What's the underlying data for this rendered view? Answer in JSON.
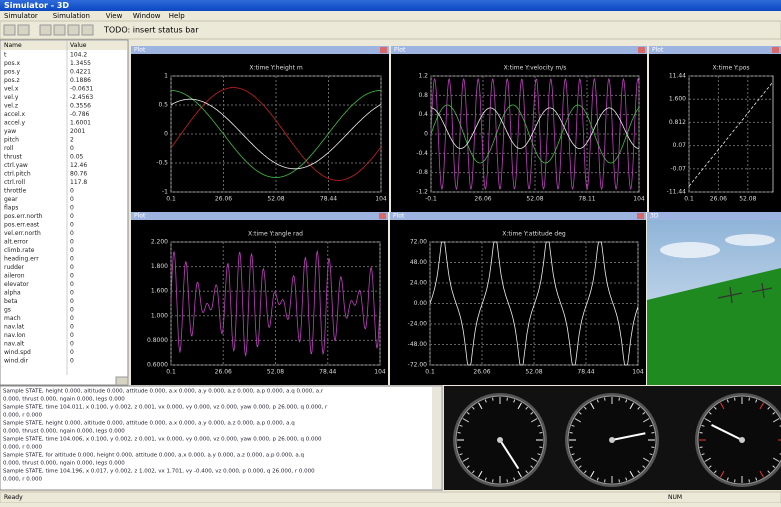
{
  "window": {
    "title": "Simulator - 3D"
  },
  "menu": [
    "Simulator",
    "Simulation",
    "View",
    "Window",
    "Help"
  ],
  "toolbar": {
    "status": "TODO: insert status bar"
  },
  "variables": {
    "header": [
      "Name",
      "Value"
    ],
    "rows": [
      [
        "t",
        "104.2"
      ],
      [
        "pos.x",
        "1.3455"
      ],
      [
        "pos.y",
        "0.4221"
      ],
      [
        "pos.z",
        "0.1886"
      ],
      [
        "vel.x",
        "-0.0631"
      ],
      [
        "vel.y",
        "-2.4563"
      ],
      [
        "vel.z",
        "0.3556"
      ],
      [
        "accel.x",
        "-0.786"
      ],
      [
        "accel.y",
        "1.6001"
      ],
      [
        "yaw",
        "2001"
      ],
      [
        "pitch",
        "2"
      ],
      [
        "roll",
        "0"
      ],
      [
        "thrust",
        "0.05"
      ],
      [
        "ctrl.yaw",
        "12.46"
      ],
      [
        "ctrl.pitch",
        "80.76"
      ],
      [
        "ctrl.roll",
        "117.8"
      ],
      [
        "throttle",
        "0"
      ],
      [
        "gear",
        "0"
      ],
      [
        "flaps",
        "0"
      ],
      [
        "pos.err.north",
        "0"
      ],
      [
        "pos.err.east",
        "0"
      ],
      [
        "vel.err.north",
        "0"
      ],
      [
        "alt.error",
        "0"
      ],
      [
        "climb.rate",
        "0"
      ],
      [
        "heading.err",
        "0"
      ],
      [
        "rudder",
        "0"
      ],
      [
        "aileron",
        "0"
      ],
      [
        "elevator",
        "0"
      ],
      [
        "alpha",
        "0"
      ],
      [
        "beta",
        "0"
      ],
      [
        "gs",
        "0"
      ],
      [
        "mach",
        "0"
      ],
      [
        "nav.lat",
        "0"
      ],
      [
        "nav.lon",
        "0"
      ],
      [
        "nav.alt",
        "0"
      ],
      [
        "wind.spd",
        "0"
      ],
      [
        "wind.dir",
        "0"
      ]
    ]
  },
  "plots": [
    {
      "title": "Plot",
      "caption": "X:time  Y:height m",
      "yticks": [
        "1",
        "0.5",
        "0",
        "-0.5",
        "-1"
      ],
      "xticks": [
        "0.1",
        "26.06",
        "52.08",
        "78.44",
        "104"
      ]
    },
    {
      "title": "Plot",
      "caption": "X:time  Y:velocity m/s",
      "yticks": [
        "1.2",
        "0.8",
        "0.4",
        "0",
        "-0.4",
        "-0.8",
        "-1.2"
      ],
      "xticks": [
        "-0.1",
        "26.06",
        "52.08",
        "78.11",
        "104"
      ]
    },
    {
      "title": "Plot",
      "caption": "X:time  Y:pos",
      "yticks": [
        "11.44",
        "1.600",
        "0.812",
        "0.07",
        "-0.07",
        "-11.44"
      ],
      "xticks": [
        "0.1",
        "26.06",
        "52.08"
      ]
    },
    {
      "title": "Plot",
      "caption": "X:time  Y:angle rad",
      "yticks": [
        "2.200",
        "1.800",
        "1.600",
        "1.000",
        "0.8000",
        "0.6000"
      ],
      "xticks": [
        "0.1",
        "26.06",
        "52.08",
        "78.44",
        "104"
      ]
    },
    {
      "title": "Plot",
      "caption": "X:time  Y:attitude deg",
      "yticks": [
        "72.00",
        "48.00",
        "24.00",
        "0.00",
        "-24.00",
        "-48.00",
        "-72.00"
      ],
      "xticks": [
        "0.1",
        "26.06",
        "52.08",
        "78.44",
        "104"
      ]
    }
  ],
  "view3d": {
    "title": "3D"
  },
  "log": [
    "Sample STATE, height 0.000, altitude 0.000, attitude 0.000, a.x 0.000, a.y 0.000, a.z 0.000, a.p 0.000, a.q 0.000, a.r",
    "0.000, thrust 0.000, ngain 0.000, legs 0.000",
    "Sample STATE, time 104.011, x 0.100, y 0.002, z 0.001, vx 0.000, vy 0.000, vz 0.000, yaw 0.000, p 26.000, q 0.000, r",
    "0.000, r 0.000",
    "Sample STATE, height 0.000, altitude 0.000, attitude 0.000, a.x 0.000, a.y 0.000, a.z 0.000, a.p 0.000, a.q",
    "0.000, thrust 0.000, ngain 0.000, legs 0.000",
    "Sample STATE, time 104.006, x 0.100, y 0.002, z 0.001, vx 0.000, vy 0.000, vz 0.000, yaw 0.000, p 26.000, q 0.000",
    "0.000, r 0.000",
    "Sample STATE, for altitude 0.000, height 0.000, attitude 0.000, a.x 0.000, a.y 0.000, a.z 0.000, a.p 0.000, a.q",
    "0.000, thrust 0.000, ngain 0.000, legs 0.000",
    "Sample STATE, time 104.196, x 0.017, y 0.002, z 1.002, vx 1.701, vy -0.400, vz 0.000, p 0.000, q 26.000, r 0.000",
    "0.000, r 0.000"
  ],
  "statusbar": {
    "left": "Ready",
    "right": "NUM"
  }
}
